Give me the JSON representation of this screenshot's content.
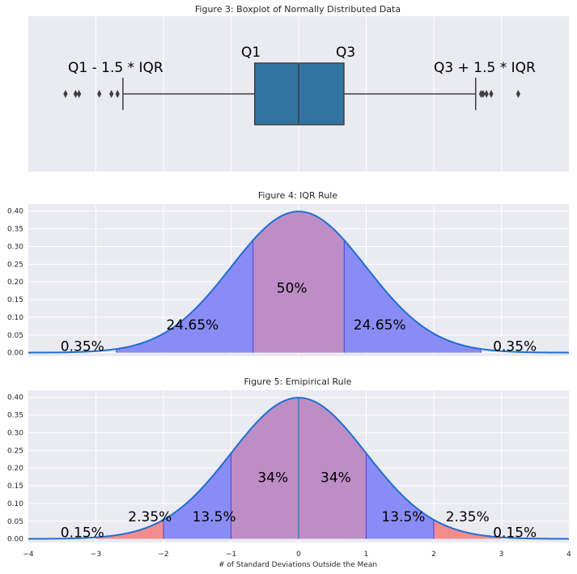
{
  "chart_data": [
    {
      "type": "boxplot",
      "title": "Figure 3: Boxplot of Normally Distributed Data",
      "xlim": [
        -4,
        4
      ],
      "grid": true,
      "color": "#3274a1",
      "box": {
        "q1": -0.65,
        "median": 0.0,
        "q3": 0.67,
        "whisker_low": -2.6,
        "whisker_high": 2.62
      },
      "outliers": [
        -3.45,
        -3.3,
        -3.25,
        -2.95,
        -2.77,
        -2.68,
        2.7,
        2.73,
        2.78,
        2.85,
        3.25
      ],
      "annotations": [
        {
          "text": "Q1 - 1.5 * IQR",
          "x": -3.4,
          "y": "above-left"
        },
        {
          "text": "Q1",
          "x": -0.72,
          "y": "above"
        },
        {
          "text": "Q3",
          "x": 0.68,
          "y": "above"
        },
        {
          "text": "Q3 + 1.5 * IQR",
          "x": 2.0,
          "y": "above-right"
        }
      ]
    },
    {
      "type": "area",
      "title": "Figure 4: IQR Rule",
      "xlim": [
        -4,
        4
      ],
      "ylim": [
        -0.01,
        0.42
      ],
      "yticks": [
        "0.00",
        "0.05",
        "0.10",
        "0.15",
        "0.20",
        "0.25",
        "0.30",
        "0.35",
        "0.40"
      ],
      "curve": "standard normal pdf",
      "regions": [
        {
          "from": -2.698,
          "to": -0.6745,
          "color": "#8a8cf5"
        },
        {
          "from": -0.6745,
          "to": 0.6745,
          "color": "#bd8ec6"
        },
        {
          "from": 0.6745,
          "to": 2.698,
          "color": "#8a8cf5"
        }
      ],
      "labels": [
        {
          "text": "0.35%",
          "x": -3.2,
          "y": 0.005
        },
        {
          "text": "24.65%",
          "x": -1.57,
          "y": 0.065
        },
        {
          "text": "50%",
          "x": -0.1,
          "y": 0.17
        },
        {
          "text": "24.65%",
          "x": 1.2,
          "y": 0.065
        },
        {
          "text": "0.35%",
          "x": 3.2,
          "y": 0.005
        }
      ]
    },
    {
      "type": "area",
      "title": "Figure 5: Emipirical Rule",
      "xlabel": "# of Standard Deviations Outside the Mean",
      "xlim": [
        -4,
        4
      ],
      "ylim": [
        -0.01,
        0.42
      ],
      "xticks": [
        "−4",
        "−3",
        "−2",
        "−1",
        "0",
        "1",
        "2",
        "3",
        "4"
      ],
      "yticks": [
        "0.00",
        "0.05",
        "0.10",
        "0.15",
        "0.20",
        "0.25",
        "0.30",
        "0.35",
        "0.40"
      ],
      "curve": "standard normal pdf",
      "regions": [
        {
          "from": -3,
          "to": -2,
          "color": "#f38c8e"
        },
        {
          "from": -2,
          "to": -1,
          "color": "#8a8cf5"
        },
        {
          "from": -1,
          "to": 0,
          "color": "#bd8ec6"
        },
        {
          "from": 0,
          "to": 1,
          "color": "#bd8ec6"
        },
        {
          "from": 1,
          "to": 2,
          "color": "#8a8cf5"
        },
        {
          "from": 2,
          "to": 3,
          "color": "#f38c8e"
        }
      ],
      "labels": [
        {
          "text": "0.15%",
          "x": -3.2,
          "y": 0.005
        },
        {
          "text": "2.35%",
          "x": -2.2,
          "y": 0.05
        },
        {
          "text": "13.5%",
          "x": -1.25,
          "y": 0.05
        },
        {
          "text": "34%",
          "x": -0.38,
          "y": 0.16
        },
        {
          "text": "34%",
          "x": 0.55,
          "y": 0.16
        },
        {
          "text": "13.5%",
          "x": 1.55,
          "y": 0.05
        },
        {
          "text": "2.35%",
          "x": 2.5,
          "y": 0.05
        },
        {
          "text": "0.15%",
          "x": 3.2,
          "y": 0.005
        }
      ]
    }
  ],
  "colors": {
    "panel_bg": "#eaeaf2",
    "grid": "#ffffff",
    "curve": "#1f6fd2",
    "box_edge": "#3f3f3f"
  }
}
